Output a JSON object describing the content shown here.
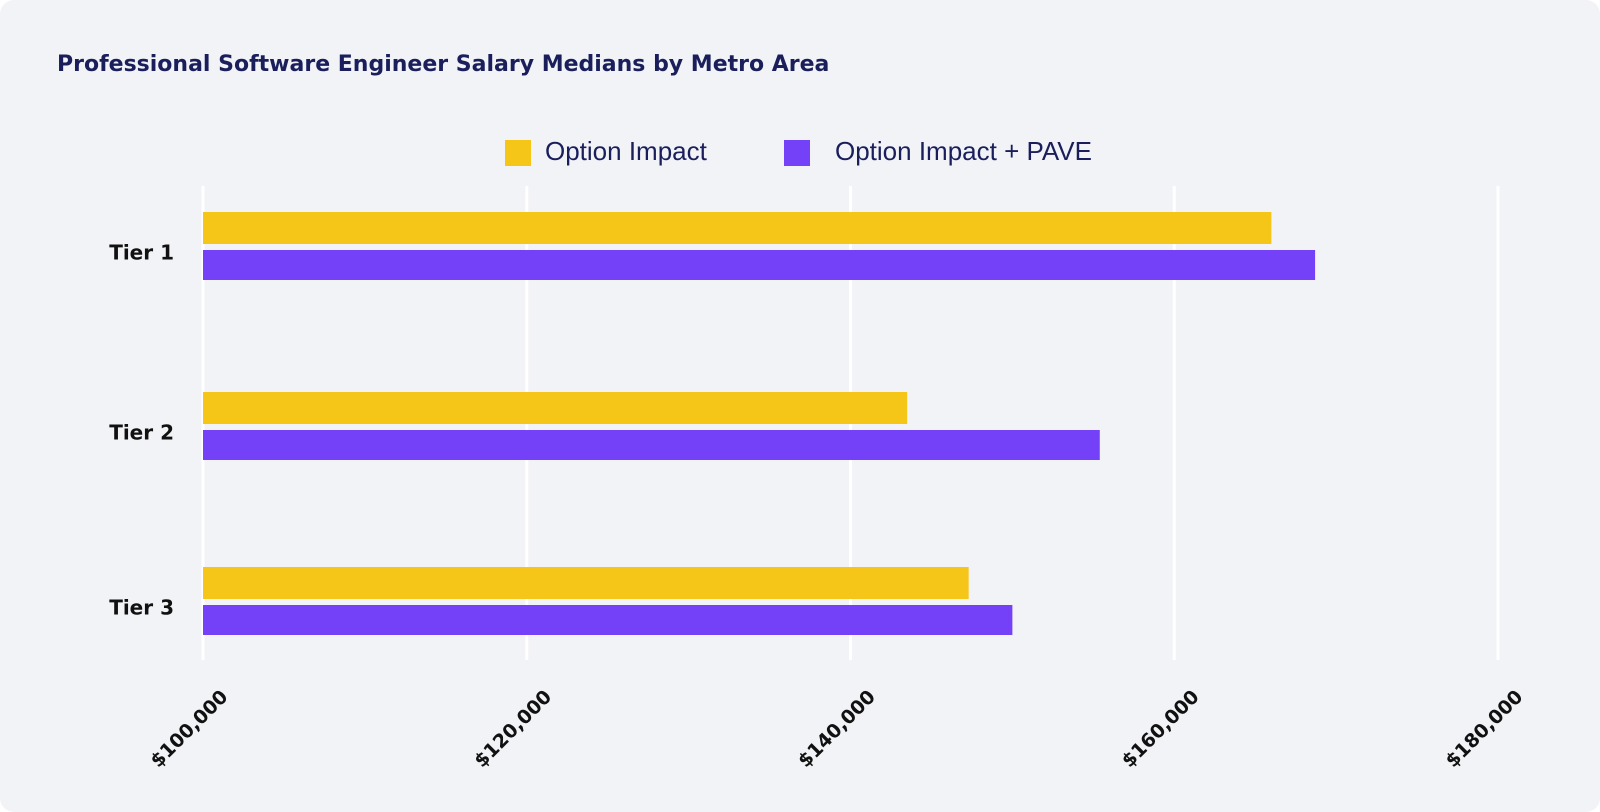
{
  "chart_data": {
    "type": "bar",
    "orientation": "horizontal",
    "title": "Professional Software Engineer Salary Medians by Metro Area",
    "categories": [
      "Tier 1",
      "Tier 2",
      "Tier 3"
    ],
    "series": [
      {
        "name": "Option Impact",
        "color": "#f5c518",
        "values": [
          166000,
          143500,
          147300
        ]
      },
      {
        "name": "Option Impact + PAVE",
        "color": "#7441f8",
        "values": [
          168700,
          155400,
          150000
        ]
      }
    ],
    "xlim": [
      100000,
      180000
    ],
    "xticks": [
      100000,
      120000,
      140000,
      160000,
      180000
    ],
    "xtick_labels": [
      "$100,000",
      "$120,000",
      "$140,000",
      "$160,000",
      "$180,000"
    ],
    "xlabel": "",
    "ylabel": "",
    "grid": "vertical",
    "legend": "top-center"
  }
}
